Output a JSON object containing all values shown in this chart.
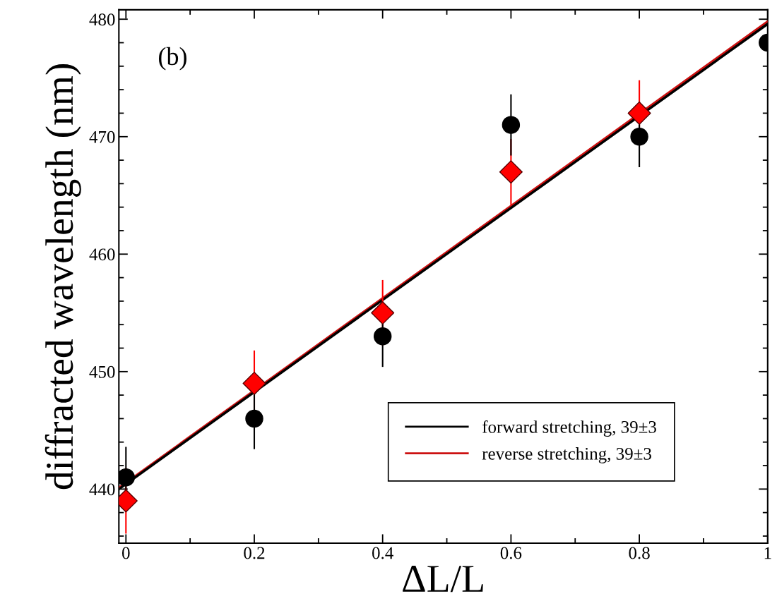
{
  "chart_data": {
    "type": "scatter",
    "xlabel": "ΔL/L",
    "ylabel": "diffracted wavelength (nm)",
    "annotations": [
      "(b)"
    ],
    "xlim": [
      -0.011,
      1.0
    ],
    "ylim": [
      435.4,
      480.8
    ],
    "xticks": [
      0,
      0.2,
      0.4,
      0.6,
      0.8,
      1
    ],
    "yticks": [
      440,
      450,
      460,
      470,
      480
    ],
    "grid": false,
    "legend": "bottom right",
    "series": [
      {
        "name": "reverse stretching, 39±3",
        "type": "line",
        "color": "#cc1111",
        "x": [
          -0.011,
          1.0
        ],
        "values": [
          440.1,
          479.8
        ],
        "marker": "none"
      },
      {
        "name": "forward stretching, 39±3",
        "type": "line",
        "color": "#000000",
        "x": [
          -0.011,
          1.0
        ],
        "values": [
          440.0,
          479.6
        ],
        "marker": "none"
      },
      {
        "color": "#ff0000",
        "marker": "diamond",
        "x": [
          0,
          0.2,
          0.4,
          0.6,
          0.8
        ],
        "values": [
          439,
          449,
          455,
          467,
          472
        ],
        "errors": [
          2.8,
          2.8,
          2.8,
          2.8,
          2.8
        ]
      },
      {
        "color": "#000000",
        "marker": "circle",
        "x": [
          0,
          0.2,
          0.4,
          0.6,
          0.8,
          1.0
        ],
        "values": [
          441,
          446,
          453,
          471,
          470,
          478
        ],
        "errors": [
          2.6,
          2.6,
          2.6,
          2.6,
          2.6,
          null
        ]
      }
    ]
  }
}
